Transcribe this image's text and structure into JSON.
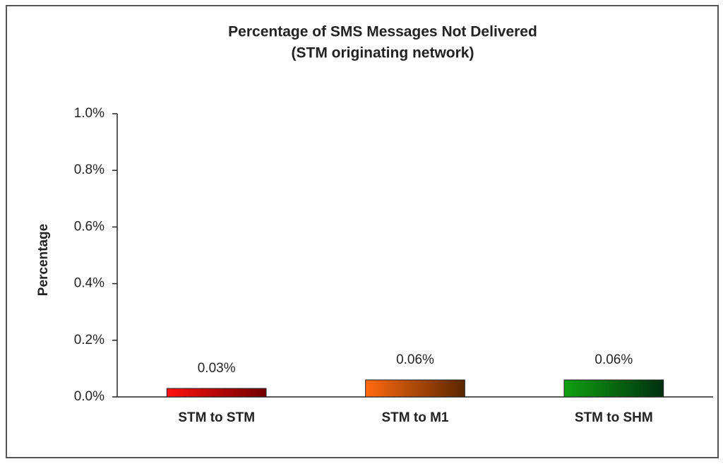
{
  "chart_data": {
    "type": "bar",
    "title": "Percentage of SMS Messages Not Delivered",
    "subtitle": "(STM originating network)",
    "y_label": "Percentage",
    "categories": [
      "STM to STM",
      "STM to M1",
      "STM to SHM"
    ],
    "values": [
      0.03,
      0.06,
      0.06
    ],
    "value_labels": [
      "0.03%",
      "0.06%",
      "0.06%"
    ],
    "colors": [
      "#ff1010",
      "#ff6a10",
      "#10a010"
    ],
    "color_ends": [
      "#700000",
      "#5a2600",
      "#003010"
    ],
    "ylim": [
      0,
      1.0
    ],
    "yticks": [
      {
        "value": 0,
        "label": "0.0%"
      },
      {
        "value": 0.2,
        "label": "0.2%"
      },
      {
        "value": 0.4,
        "label": "0.4%"
      },
      {
        "value": 0.6,
        "label": "0.6%"
      },
      {
        "value": 0.8,
        "label": "0.8%"
      },
      {
        "value": 1.0,
        "label": "1.0%"
      }
    ],
    "grid": false
  }
}
